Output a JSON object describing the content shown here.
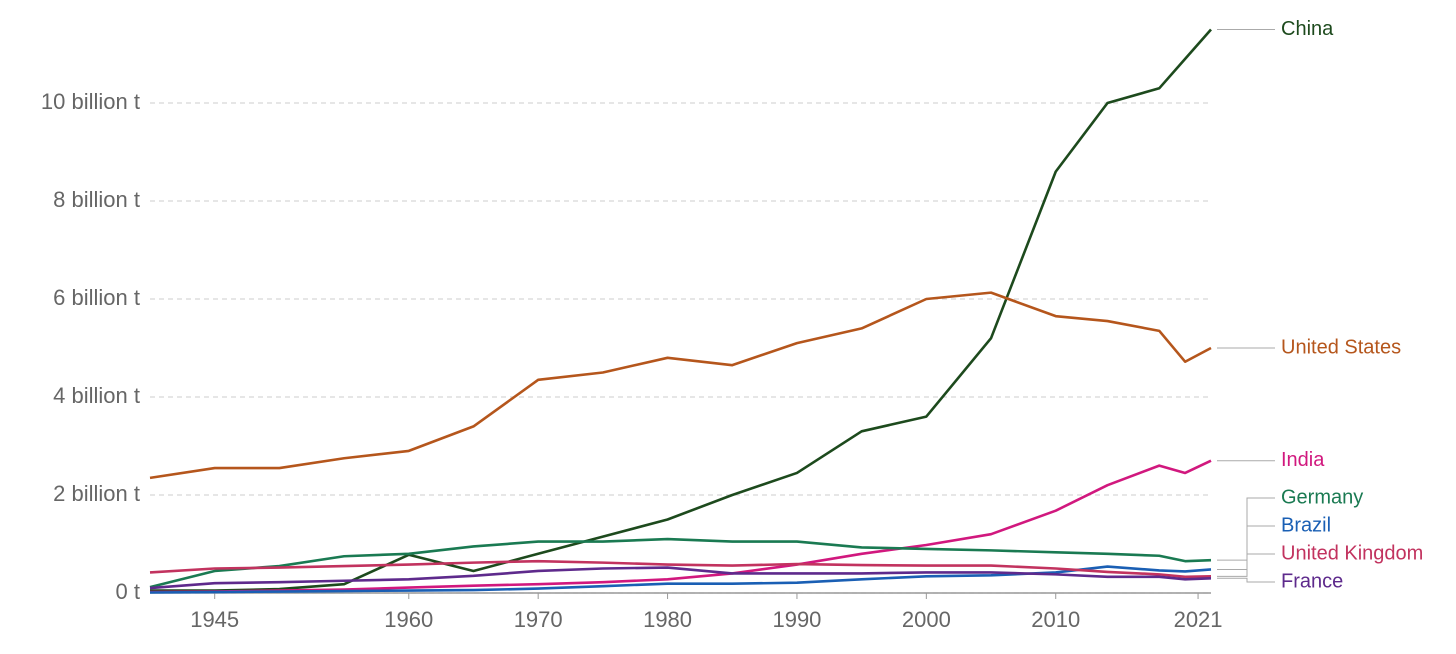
{
  "chart_data": {
    "type": "line",
    "x": [
      1940,
      1945,
      1950,
      1955,
      1960,
      1965,
      1970,
      1975,
      1980,
      1985,
      1990,
      1995,
      2000,
      2005,
      2010,
      2014,
      2018,
      2020,
      2022
    ],
    "series": [
      {
        "name": "China",
        "color": "#1d4a1d",
        "values": [
          0.05,
          0.05,
          0.08,
          0.18,
          0.78,
          0.45,
          0.8,
          1.15,
          1.5,
          2.0,
          2.45,
          3.3,
          3.6,
          5.2,
          8.6,
          10.0,
          10.3,
          10.9,
          11.5
        ]
      },
      {
        "name": "United States",
        "color": "#b5561c",
        "values": [
          2.35,
          2.55,
          2.55,
          2.75,
          2.9,
          3.4,
          4.35,
          4.5,
          4.8,
          4.65,
          5.1,
          5.4,
          6.0,
          6.13,
          5.65,
          5.55,
          5.35,
          4.72,
          5.0
        ]
      },
      {
        "name": "India",
        "color": "#d1187e",
        "values": [
          0.02,
          0.03,
          0.05,
          0.07,
          0.11,
          0.15,
          0.18,
          0.22,
          0.28,
          0.4,
          0.58,
          0.8,
          0.98,
          1.2,
          1.68,
          2.2,
          2.6,
          2.45,
          2.7
        ]
      },
      {
        "name": "Germany",
        "color": "#1a7a52",
        "values": [
          0.12,
          0.45,
          0.55,
          0.75,
          0.8,
          0.95,
          1.05,
          1.05,
          1.1,
          1.05,
          1.05,
          0.93,
          0.9,
          0.87,
          0.83,
          0.8,
          0.76,
          0.65,
          0.67
        ]
      },
      {
        "name": "Brazil",
        "color": "#1a5fb4",
        "values": [
          0.01,
          0.02,
          0.03,
          0.04,
          0.05,
          0.06,
          0.09,
          0.14,
          0.19,
          0.19,
          0.21,
          0.28,
          0.34,
          0.36,
          0.42,
          0.54,
          0.46,
          0.44,
          0.48
        ]
      },
      {
        "name": "United Kingdom",
        "color": "#c2335f",
        "values": [
          0.42,
          0.5,
          0.52,
          0.55,
          0.58,
          0.62,
          0.65,
          0.62,
          0.58,
          0.56,
          0.59,
          0.57,
          0.56,
          0.56,
          0.5,
          0.43,
          0.38,
          0.33,
          0.34
        ]
      },
      {
        "name": "France",
        "color": "#5e2a8c",
        "values": [
          0.1,
          0.2,
          0.22,
          0.25,
          0.28,
          0.35,
          0.45,
          0.5,
          0.52,
          0.4,
          0.4,
          0.4,
          0.42,
          0.42,
          0.38,
          0.33,
          0.33,
          0.28,
          0.3
        ]
      }
    ],
    "xlim": [
      1940,
      2022
    ],
    "xticks": [
      1945,
      1960,
      1970,
      1980,
      1990,
      2000,
      2010,
      2021
    ],
    "ylim": [
      0,
      11.6
    ],
    "yticks": [
      {
        "value": 0,
        "label": "0 t"
      },
      {
        "value": 2,
        "label": "2 billion t"
      },
      {
        "value": 4,
        "label": "4 billion t"
      },
      {
        "value": 6,
        "label": "6 billion t"
      },
      {
        "value": 8,
        "label": "8 billion t"
      },
      {
        "value": 10,
        "label": "10 billion t"
      }
    ],
    "grid": true
  }
}
